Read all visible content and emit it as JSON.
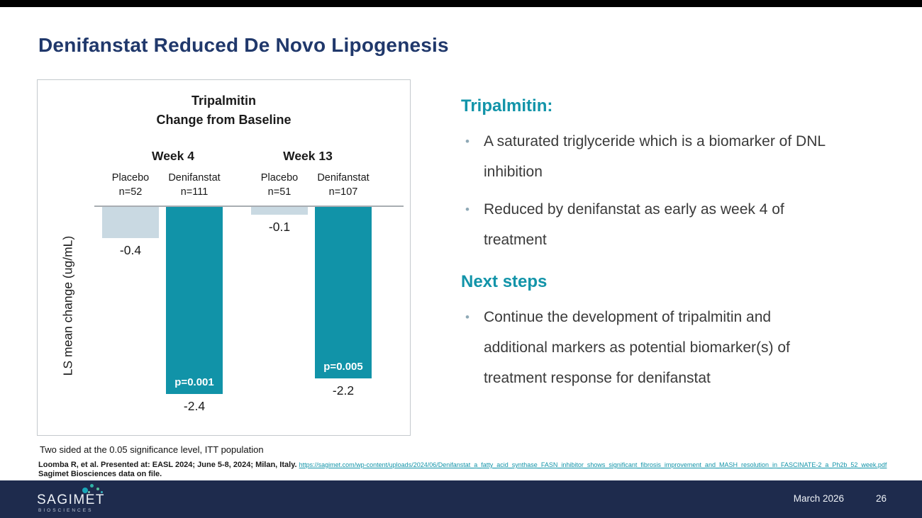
{
  "title": "Denifanstat Reduced De Novo Lipogenesis",
  "chart_data": {
    "type": "bar",
    "title": "Tripalmitin Change from Baseline",
    "title_lines": [
      "Tripalmitin",
      "Change from Baseline"
    ],
    "ylabel": "LS mean change (ug/mL)",
    "ylim": [
      -2.6,
      0
    ],
    "grid": false,
    "legend_position": "none",
    "groups": [
      {
        "label": "Week 4",
        "bars": [
          {
            "name": "Placebo",
            "n": "n=52",
            "value": -0.4,
            "color": "#c9d9e2"
          },
          {
            "name": "Denifanstat",
            "n": "n=111",
            "value": -2.4,
            "p": "p=0.001",
            "color": "#1193a8"
          }
        ]
      },
      {
        "label": "Week 13",
        "bars": [
          {
            "name": "Placebo",
            "n": "n=51",
            "value": -0.1,
            "color": "#c9d9e2"
          },
          {
            "name": "Denifanstat",
            "n": "n=107",
            "value": -2.2,
            "p": "p=0.005",
            "color": "#1193a8"
          }
        ]
      }
    ],
    "footnote": "Two sided at the 0.05 significance level, ITT population"
  },
  "right_panel": {
    "heading1": "Tripalmitin:",
    "bullets1": [
      "A saturated triglyceride which is a biomarker of DNL inhibition",
      "Reduced by denifanstat as early as week 4 of treatment"
    ],
    "heading2": "Next steps",
    "bullets2": [
      "Continue the development of tripalmitin and additional markers as potential biomarker(s) of treatment response for denifanstat"
    ]
  },
  "citation": {
    "line1": "Loomba R, et al. Presented at: EASL 2024; June 5-8, 2024; Milan, Italy.",
    "link": "https://sagimet.com/wp-content/uploads/2024/06/Denifanstat_a_fatty_acid_synthase_FASN_inhibitor_shows_significant_fibrosis_improvement_and_MASH_resolution_in_FASCINATE-2_a_Ph2b_52_week.pdf",
    "line2": "Sagimet Biosciences data on file."
  },
  "footer": {
    "logo_text": "SAGIMET",
    "logo_subtext": "BIOSCIENCES",
    "date": "March 2026",
    "page": "26"
  },
  "colors": {
    "accent_teal": "#1294a9",
    "denifanstat_bar": "#1193a8",
    "placebo_bar": "#c9d9e2",
    "title_navy": "#20386b",
    "footer_navy": "#1e2b4d"
  }
}
